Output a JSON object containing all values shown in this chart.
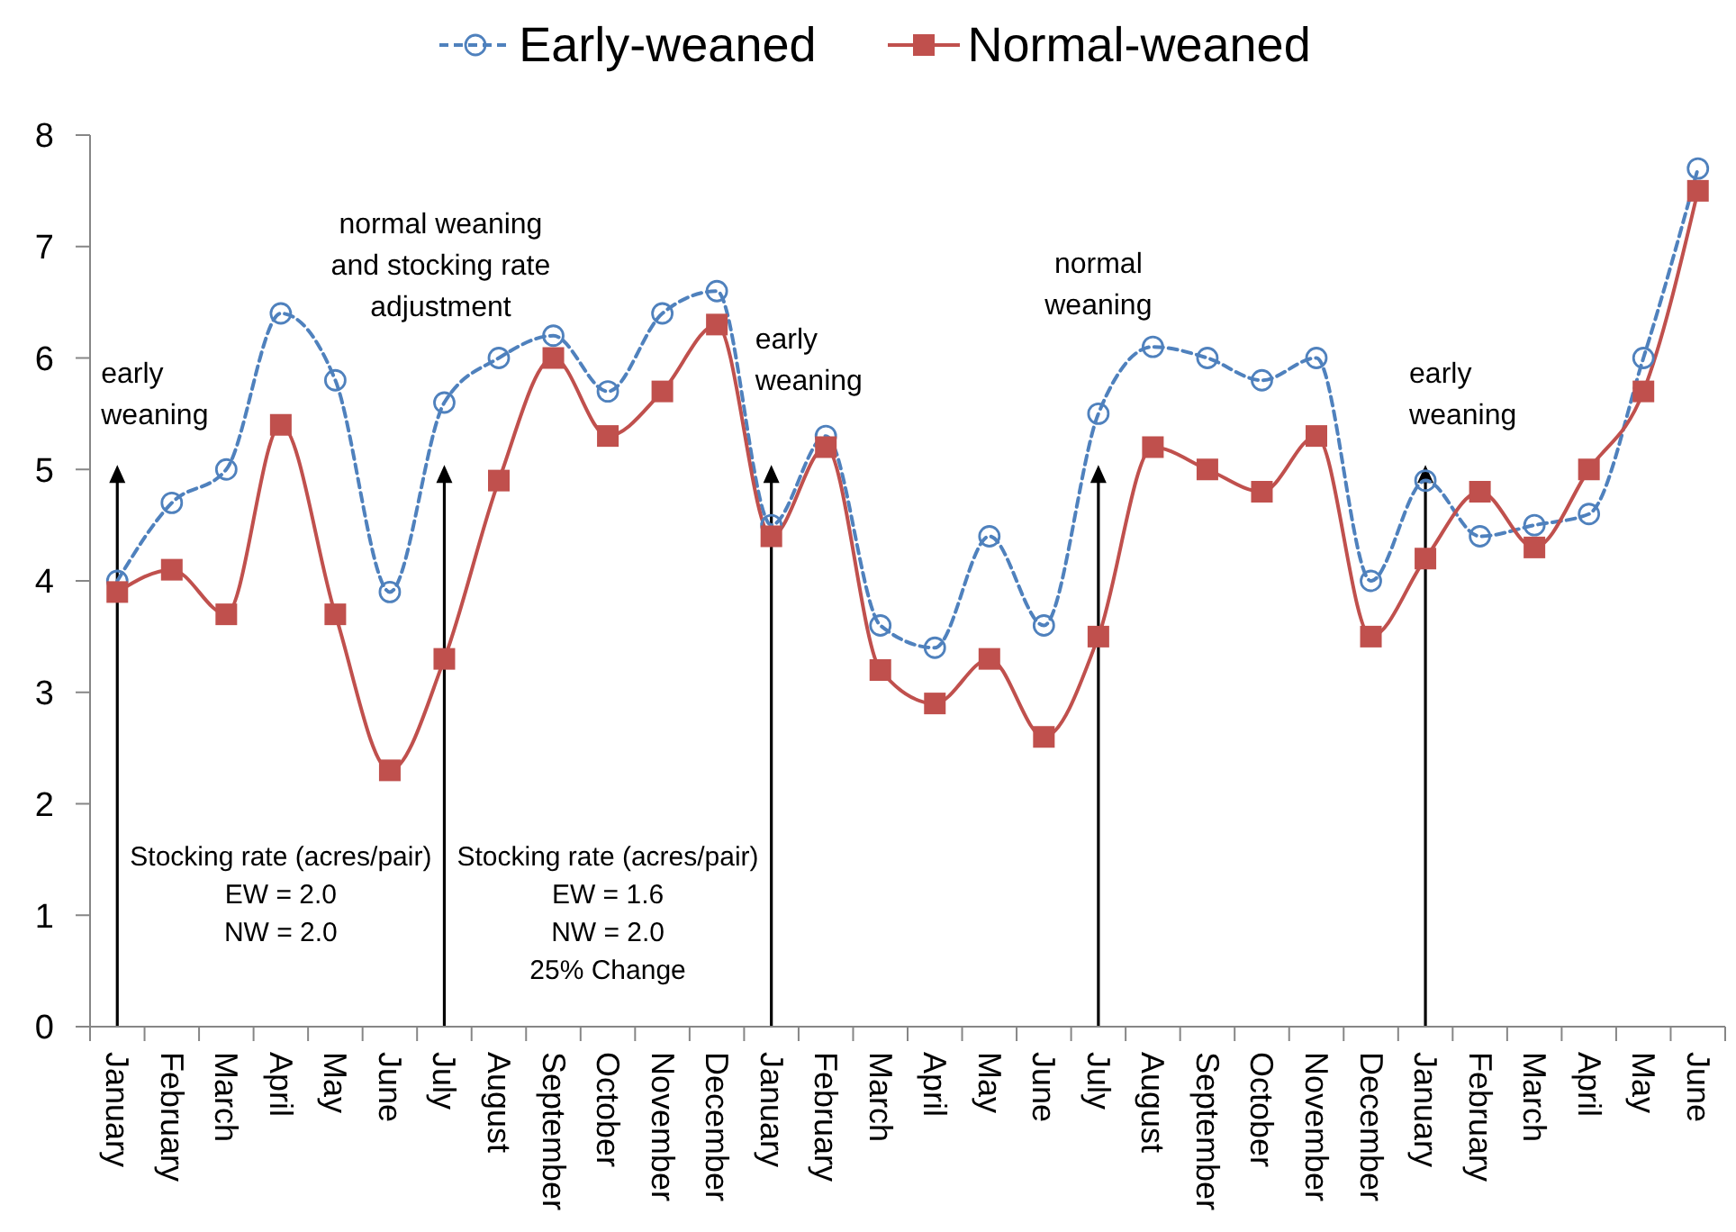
{
  "chart_data": {
    "type": "line",
    "categories": [
      "January",
      "February",
      "March",
      "April",
      "May",
      "June",
      "July",
      "August",
      "September",
      "October",
      "November",
      "December",
      "January",
      "February",
      "March",
      "April",
      "May",
      "June",
      "July",
      "August",
      "September",
      "October",
      "November",
      "December",
      "January",
      "February",
      "March",
      "April",
      "May",
      "June"
    ],
    "series": [
      {
        "name": "Early-weaned",
        "color": "#4f81bd",
        "marker": "circle",
        "line_style": "dashed",
        "values": [
          4.0,
          4.7,
          5.0,
          6.4,
          5.8,
          3.9,
          5.6,
          6.0,
          6.2,
          5.7,
          6.4,
          6.6,
          4.5,
          5.3,
          3.6,
          3.4,
          4.4,
          3.6,
          5.5,
          6.1,
          6.0,
          5.8,
          6.0,
          4.0,
          4.9,
          4.4,
          4.5,
          4.6,
          6.0,
          7.7
        ]
      },
      {
        "name": "Normal-weaned",
        "color": "#c0504d",
        "marker": "square",
        "line_style": "solid",
        "values": [
          3.9,
          4.1,
          3.7,
          5.4,
          3.7,
          2.3,
          3.3,
          4.9,
          6.0,
          5.3,
          5.7,
          6.3,
          4.4,
          5.2,
          3.2,
          2.9,
          3.3,
          2.6,
          3.5,
          5.2,
          5.0,
          4.8,
          5.3,
          3.5,
          4.2,
          4.8,
          4.3,
          5.0,
          5.7,
          7.5
        ]
      }
    ],
    "ylim": [
      0,
      8
    ],
    "yticks": [
      0,
      1,
      2,
      3,
      4,
      5,
      6,
      7,
      8
    ],
    "legend": "top",
    "annotations": [
      "early\nweaning",
      "normal weaning\nand stocking rate\nadjustment",
      "early\nweaning",
      "normal\nweaning",
      "early\nweaning",
      "Stocking rate (acres/pair)\nEW = 2.0\nNW = 2.0",
      "Stocking rate (acres/pair)\nEW = 1.6\nNW = 2.0\n25% Change"
    ]
  }
}
